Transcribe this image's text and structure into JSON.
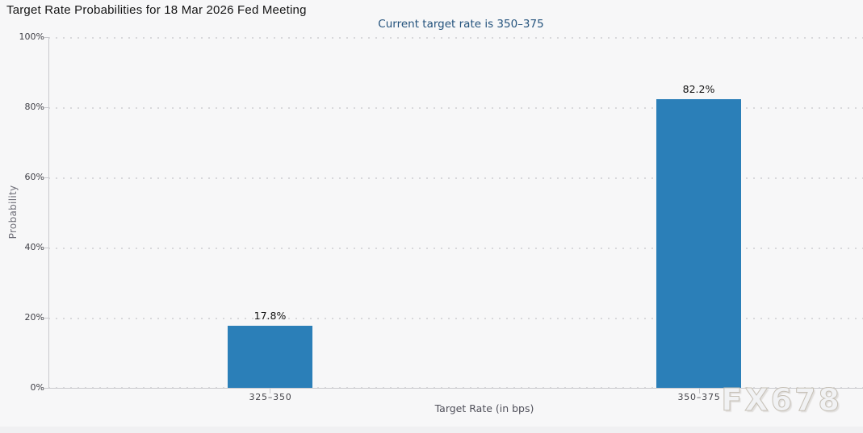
{
  "chart_data": {
    "type": "bar",
    "title": "Target Rate Probabilities for 18 Mar 2026 Fed Meeting",
    "subtitle": "Current target rate is 350–375",
    "xlabel": "Target Rate (in bps)",
    "ylabel": "Probability",
    "categories": [
      "325–350",
      "350–375"
    ],
    "values": [
      17.8,
      82.2
    ],
    "value_labels": [
      "17.8%",
      "82.2%"
    ],
    "ylim": [
      0,
      100
    ],
    "yticks": [
      "0%",
      "20%",
      "40%",
      "60%",
      "80%",
      "100%"
    ],
    "grid": "horizontal-dotted",
    "legend": "none",
    "colors": {
      "bar": "#2b7fb8",
      "subtitle_text": "#23527c",
      "gridline": "#d8d8db",
      "axis": "#c9c9cd",
      "background": "#f7f7f8"
    },
    "watermark": "FX678"
  }
}
